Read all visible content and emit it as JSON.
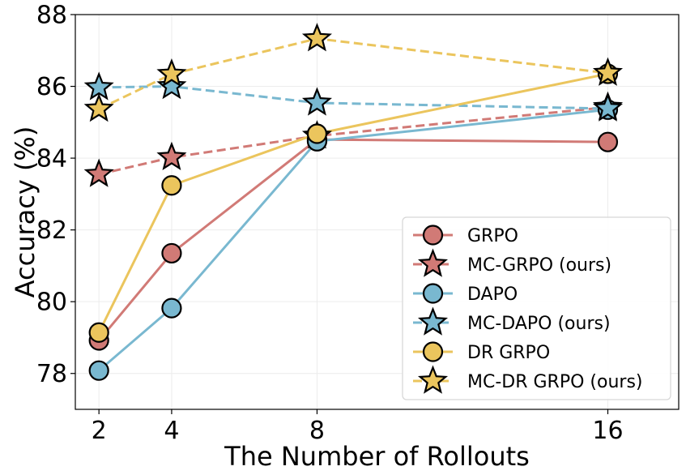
{
  "chart_data": {
    "type": "line",
    "title": "",
    "xlabel": "The Number of Rollouts",
    "ylabel": "Accuracy (%)",
    "x": [
      2,
      4,
      8,
      16
    ],
    "xticks": [
      "2",
      "4",
      "8",
      "16"
    ],
    "xlim": [
      1.35,
      17.95
    ],
    "ylim": [
      77,
      88
    ],
    "yticks": [
      "78",
      "80",
      "82",
      "84",
      "86",
      "88"
    ],
    "grid": true,
    "legend_position": "lower-right",
    "series": [
      {
        "name": "GRPO",
        "values": [
          78.92,
          81.35,
          84.52,
          84.45
        ],
        "color": "#d17a76",
        "dashed": false,
        "marker": "circle"
      },
      {
        "name": "MC-GRPO (ours)",
        "values": [
          83.55,
          84.02,
          84.62,
          85.42
        ],
        "color": "#d17a76",
        "dashed": true,
        "marker": "star"
      },
      {
        "name": "DAPO",
        "values": [
          78.08,
          79.82,
          84.47,
          85.35
        ],
        "color": "#79b8d0",
        "dashed": false,
        "marker": "circle"
      },
      {
        "name": "MC-DAPO (ours)",
        "values": [
          85.97,
          86.0,
          85.54,
          85.38
        ],
        "color": "#79b8d0",
        "dashed": true,
        "marker": "star"
      },
      {
        "name": "DR GRPO",
        "values": [
          79.14,
          83.24,
          84.68,
          86.35
        ],
        "color": "#ebc55d",
        "dashed": false,
        "marker": "circle"
      },
      {
        "name": "MC-DR GRPO (ours)",
        "values": [
          85.37,
          86.34,
          87.33,
          86.37
        ],
        "color": "#ebc55d",
        "dashed": true,
        "marker": "star"
      }
    ]
  }
}
